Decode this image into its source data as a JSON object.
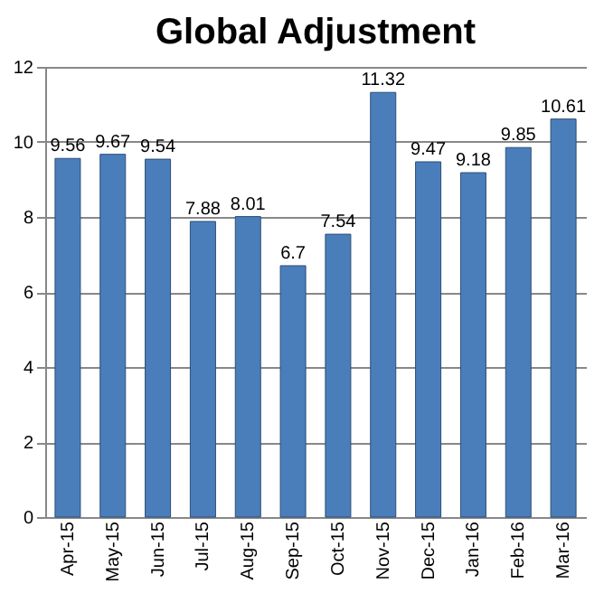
{
  "chart_data": {
    "type": "bar",
    "title": "Global Adjustment",
    "categories": [
      "Apr-15",
      "May-15",
      "Jun-15",
      "Jul-15",
      "Aug-15",
      "Sep-15",
      "Oct-15",
      "Nov-15",
      "Dec-15",
      "Jan-16",
      "Feb-16",
      "Mar-16"
    ],
    "values": [
      9.56,
      9.67,
      9.54,
      7.88,
      8.01,
      6.7,
      7.54,
      11.32,
      9.47,
      9.18,
      9.85,
      10.61
    ],
    "color": "#4a7ebb",
    "ylim": [
      0,
      12
    ],
    "yticks": [
      0,
      2,
      4,
      6,
      8,
      10,
      12
    ],
    "grid": "y",
    "data_labels": true
  }
}
